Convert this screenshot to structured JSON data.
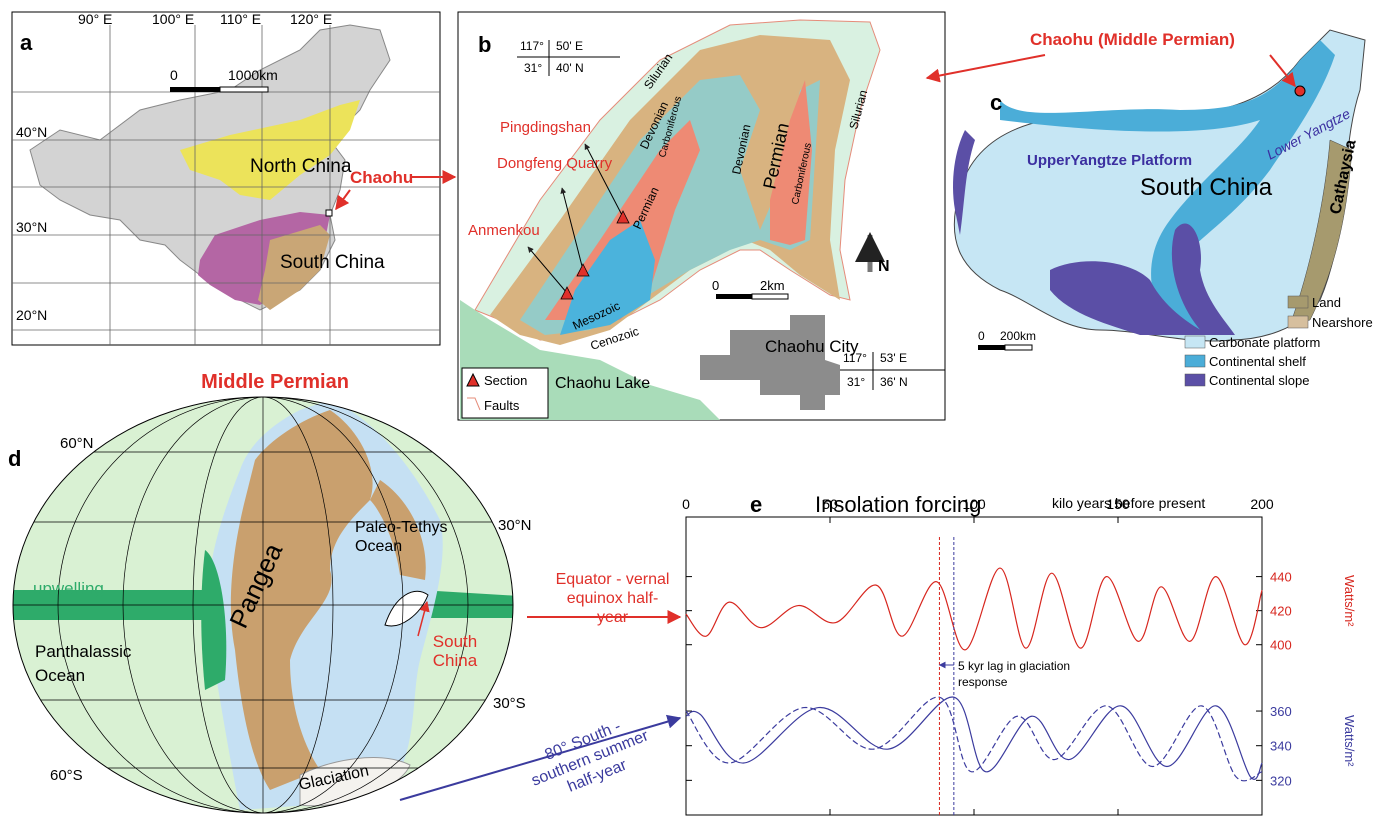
{
  "figure": {
    "a": {
      "label": "a",
      "longitudes": [
        "90° E",
        "100° E",
        "110° E",
        "120° E"
      ],
      "latitudes": [
        "40°N",
        "30°N",
        "20°N"
      ],
      "scale": [
        "0",
        "1000km"
      ],
      "regions": [
        "North China",
        "South China"
      ],
      "site": "Chaohu"
    },
    "b": {
      "label": "b",
      "coords_nw": [
        "117°",
        "50' E",
        "31°",
        "40' N"
      ],
      "coords_se": [
        "117°",
        "53' E",
        "31°",
        "36' N"
      ],
      "units": [
        "Silurian",
        "Devonian",
        "Carboniferous",
        "Permian",
        "Devonian",
        "Permian",
        "Carboniferous",
        "Silurian",
        "Mesozoic",
        "Cenozoic"
      ],
      "sections": [
        "Pingdingshan",
        "Dongfeng Quarry",
        "Anmenkou"
      ],
      "scale": [
        "0",
        "2km"
      ],
      "north": "N",
      "city": "Chaohu City",
      "lake": "Chaohu Lake",
      "legend": [
        "Section",
        "Faults"
      ]
    },
    "c": {
      "label": "c",
      "site": "Chaohu (Middle Permian)",
      "names": [
        "Lower Yangtze",
        "UpperYangtze Platform",
        "South China",
        "Cathaysia"
      ],
      "scale": [
        "0",
        "200km"
      ],
      "legend": [
        {
          "label": "Land",
          "color": "#a69a6e"
        },
        {
          "label": "Nearshore",
          "color": "#d6bf9e"
        },
        {
          "label": "Carbonate platform",
          "color": "#c6e6f4"
        },
        {
          "label": "Continental shelf",
          "color": "#4badd8"
        },
        {
          "label": "Continental slope",
          "color": "#5b4fa6"
        }
      ]
    },
    "d": {
      "label": "d",
      "title": "Middle Permian",
      "latitudes": [
        "60°N",
        "30°N",
        "30°S",
        "60°S"
      ],
      "names": [
        "upwelling",
        "Pangea",
        "Paleo-Tethys Ocean",
        "Panthalassic Ocean",
        "South China",
        "Glaciation"
      ]
    }
  },
  "chart_data": {
    "type": "line",
    "label": "e",
    "title": "Insolation forcing",
    "xlabel": "kilo years before present",
    "xlim": [
      0,
      200
    ],
    "xticks": [
      0,
      50,
      100,
      150,
      200
    ],
    "ylim": [
      300,
      475
    ],
    "yticks": [
      400,
      420,
      440
    ],
    "ylabel": "Watts/m²",
    "y2lim": [
      300,
      472
    ],
    "y2ticks": [
      320,
      340,
      360
    ],
    "y2label": "Watts/m²",
    "series": [
      {
        "name": "Equator - vernal equinox half-year",
        "color": "#d7261e",
        "x": [
          0,
          7,
          15,
          26,
          39,
          52,
          66,
          75,
          87,
          97,
          109,
          118,
          127,
          137,
          146,
          157,
          165,
          175,
          184,
          194,
          200
        ],
        "values": [
          418,
          405,
          425,
          410,
          423,
          413,
          435,
          405,
          437,
          397,
          445,
          398,
          442,
          398,
          440,
          402,
          434,
          402,
          440,
          400,
          432
        ]
      },
      {
        "name": "80° South - southern summer half-year",
        "color": "#3b3b9e",
        "axis": "y2",
        "x": [
          0,
          5,
          20,
          46,
          70,
          93,
          104,
          120,
          133,
          151,
          167,
          184,
          196,
          200
        ],
        "values": [
          357,
          358,
          330,
          362,
          338,
          368,
          325,
          357,
          332,
          363,
          328,
          363,
          322,
          330
        ]
      },
      {
        "color": "#3b3b9e",
        "axis": "y2",
        "dashed": true,
        "x": [
          0,
          15,
          41,
          65,
          88,
          99,
          115,
          128,
          146,
          162,
          179,
          191,
          200
        ],
        "values": [
          360,
          330,
          362,
          338,
          368,
          325,
          357,
          332,
          363,
          328,
          363,
          322,
          325
        ]
      }
    ],
    "vlines": [
      {
        "x": 88,
        "color": "#d7261e"
      },
      {
        "x": 93,
        "color": "#3b3b9e"
      }
    ],
    "annotation": "5 kyr lag in glaciation response"
  }
}
